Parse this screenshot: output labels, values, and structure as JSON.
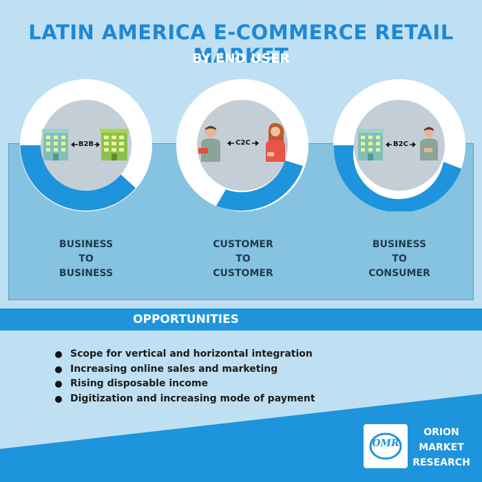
{
  "header": {
    "title": "LATIN AMERICA E-COMMERCE RETAIL MARKET",
    "subtitle": "BY END USER"
  },
  "segments": [
    {
      "badge": "B2B",
      "line1": "BUSINESS",
      "line2": "TO",
      "line3": "BUSINESS",
      "share": 0.35
    },
    {
      "badge": "C2C",
      "line1": "CUSTOMER",
      "line2": "TO",
      "line3": "CUSTOMER",
      "share": 0.3
    },
    {
      "badge": "B2C",
      "line1": "BUSINESS",
      "line2": "TO",
      "line3": "CONSUMER",
      "share": 0.35
    }
  ],
  "opportunities": {
    "title": "OPPORTUNITIES",
    "items": [
      "Scope for vertical and horizontal integration",
      "Increasing online sales and marketing",
      "Rising disposable income",
      "Digitization and increasing mode of payment"
    ]
  },
  "brand": {
    "logo": "OMR",
    "line1": "ORION",
    "line2": "MARKET",
    "line3": "RESEARCH"
  },
  "colors": {
    "accent": "#1e94dc",
    "panel": "#86c3e1",
    "background": "#bfe0f2"
  }
}
